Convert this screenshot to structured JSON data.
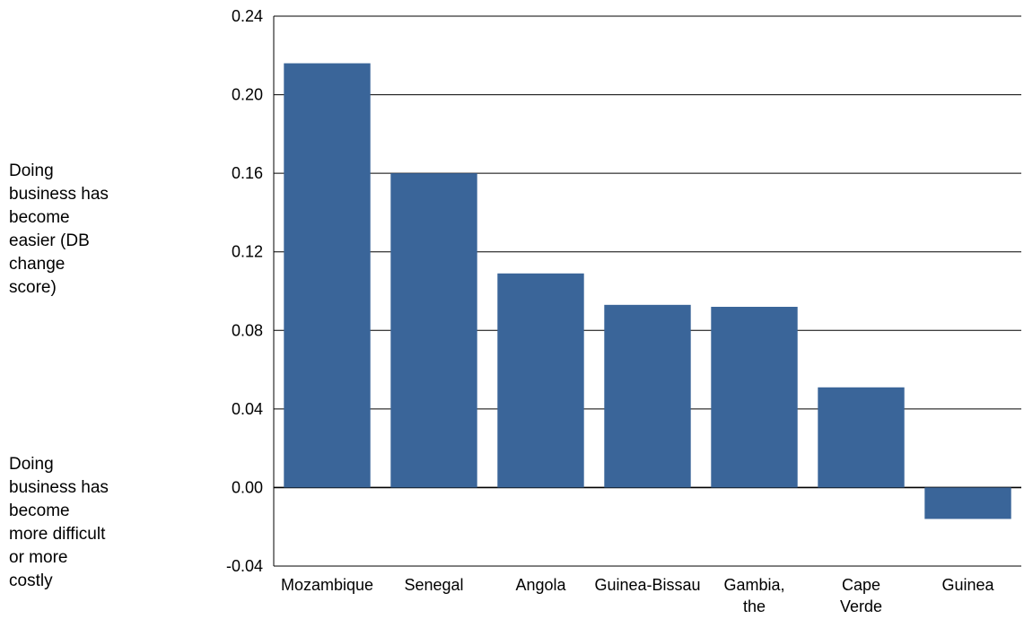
{
  "side_notes": {
    "top": "Doing\nbusiness has\nbecome\neasier (DB\nchange\nscore)",
    "bottom": "Doing\nbusiness has\nbecome\nmore difficult\nor more\ncostly"
  },
  "chart_data": {
    "type": "bar",
    "categories": [
      "Mozambique",
      "Senegal",
      "Angola",
      "Guinea-Bissau",
      "Gambia, the",
      "Cape Verde",
      "Guinea"
    ],
    "category_label_lines": [
      [
        "Mozambique"
      ],
      [
        "Senegal"
      ],
      [
        "Angola"
      ],
      [
        "Guinea-Bissau"
      ],
      [
        "Gambia,",
        "the"
      ],
      [
        "Cape",
        "Verde"
      ],
      [
        "Guinea"
      ]
    ],
    "values": [
      0.216,
      0.16,
      0.109,
      0.093,
      0.092,
      0.051,
      -0.016
    ],
    "ylim": [
      -0.04,
      0.24
    ],
    "yticks": [
      "0.24",
      "0.20",
      "0.16",
      "0.12",
      "0.08",
      "0.04",
      "0.00",
      "-0.04"
    ],
    "ytick_values": [
      0.24,
      0.2,
      0.16,
      0.12,
      0.08,
      0.04,
      0.0,
      -0.04
    ],
    "grid": true,
    "colors": {
      "bar": "#3A6599",
      "grid": "#000000"
    }
  }
}
